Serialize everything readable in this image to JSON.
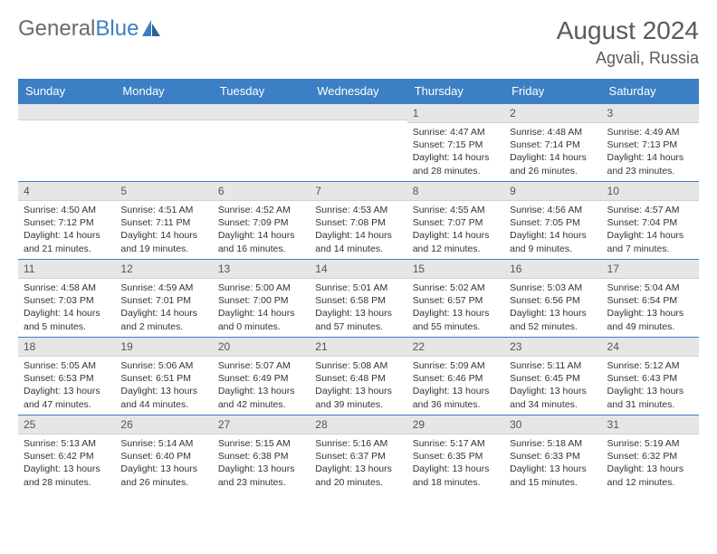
{
  "logo": {
    "word1": "General",
    "word2": "Blue"
  },
  "title": "August 2024",
  "location": "Agvali, Russia",
  "colors": {
    "header_bg": "#3b7fc4",
    "header_text": "#ffffff",
    "daynum_bg": "#e6e6e6",
    "border": "#3b7fc4",
    "text": "#333333",
    "logo_gray": "#6a6a6a",
    "logo_blue": "#3b7fc4",
    "background": "#ffffff"
  },
  "weekdays": [
    "Sunday",
    "Monday",
    "Tuesday",
    "Wednesday",
    "Thursday",
    "Friday",
    "Saturday"
  ],
  "weeks": [
    [
      {
        "day": "",
        "sunrise": "",
        "sunset": "",
        "daylight": ""
      },
      {
        "day": "",
        "sunrise": "",
        "sunset": "",
        "daylight": ""
      },
      {
        "day": "",
        "sunrise": "",
        "sunset": "",
        "daylight": ""
      },
      {
        "day": "",
        "sunrise": "",
        "sunset": "",
        "daylight": ""
      },
      {
        "day": "1",
        "sunrise": "Sunrise: 4:47 AM",
        "sunset": "Sunset: 7:15 PM",
        "daylight": "Daylight: 14 hours and 28 minutes."
      },
      {
        "day": "2",
        "sunrise": "Sunrise: 4:48 AM",
        "sunset": "Sunset: 7:14 PM",
        "daylight": "Daylight: 14 hours and 26 minutes."
      },
      {
        "day": "3",
        "sunrise": "Sunrise: 4:49 AM",
        "sunset": "Sunset: 7:13 PM",
        "daylight": "Daylight: 14 hours and 23 minutes."
      }
    ],
    [
      {
        "day": "4",
        "sunrise": "Sunrise: 4:50 AM",
        "sunset": "Sunset: 7:12 PM",
        "daylight": "Daylight: 14 hours and 21 minutes."
      },
      {
        "day": "5",
        "sunrise": "Sunrise: 4:51 AM",
        "sunset": "Sunset: 7:11 PM",
        "daylight": "Daylight: 14 hours and 19 minutes."
      },
      {
        "day": "6",
        "sunrise": "Sunrise: 4:52 AM",
        "sunset": "Sunset: 7:09 PM",
        "daylight": "Daylight: 14 hours and 16 minutes."
      },
      {
        "day": "7",
        "sunrise": "Sunrise: 4:53 AM",
        "sunset": "Sunset: 7:08 PM",
        "daylight": "Daylight: 14 hours and 14 minutes."
      },
      {
        "day": "8",
        "sunrise": "Sunrise: 4:55 AM",
        "sunset": "Sunset: 7:07 PM",
        "daylight": "Daylight: 14 hours and 12 minutes."
      },
      {
        "day": "9",
        "sunrise": "Sunrise: 4:56 AM",
        "sunset": "Sunset: 7:05 PM",
        "daylight": "Daylight: 14 hours and 9 minutes."
      },
      {
        "day": "10",
        "sunrise": "Sunrise: 4:57 AM",
        "sunset": "Sunset: 7:04 PM",
        "daylight": "Daylight: 14 hours and 7 minutes."
      }
    ],
    [
      {
        "day": "11",
        "sunrise": "Sunrise: 4:58 AM",
        "sunset": "Sunset: 7:03 PM",
        "daylight": "Daylight: 14 hours and 5 minutes."
      },
      {
        "day": "12",
        "sunrise": "Sunrise: 4:59 AM",
        "sunset": "Sunset: 7:01 PM",
        "daylight": "Daylight: 14 hours and 2 minutes."
      },
      {
        "day": "13",
        "sunrise": "Sunrise: 5:00 AM",
        "sunset": "Sunset: 7:00 PM",
        "daylight": "Daylight: 14 hours and 0 minutes."
      },
      {
        "day": "14",
        "sunrise": "Sunrise: 5:01 AM",
        "sunset": "Sunset: 6:58 PM",
        "daylight": "Daylight: 13 hours and 57 minutes."
      },
      {
        "day": "15",
        "sunrise": "Sunrise: 5:02 AM",
        "sunset": "Sunset: 6:57 PM",
        "daylight": "Daylight: 13 hours and 55 minutes."
      },
      {
        "day": "16",
        "sunrise": "Sunrise: 5:03 AM",
        "sunset": "Sunset: 6:56 PM",
        "daylight": "Daylight: 13 hours and 52 minutes."
      },
      {
        "day": "17",
        "sunrise": "Sunrise: 5:04 AM",
        "sunset": "Sunset: 6:54 PM",
        "daylight": "Daylight: 13 hours and 49 minutes."
      }
    ],
    [
      {
        "day": "18",
        "sunrise": "Sunrise: 5:05 AM",
        "sunset": "Sunset: 6:53 PM",
        "daylight": "Daylight: 13 hours and 47 minutes."
      },
      {
        "day": "19",
        "sunrise": "Sunrise: 5:06 AM",
        "sunset": "Sunset: 6:51 PM",
        "daylight": "Daylight: 13 hours and 44 minutes."
      },
      {
        "day": "20",
        "sunrise": "Sunrise: 5:07 AM",
        "sunset": "Sunset: 6:49 PM",
        "daylight": "Daylight: 13 hours and 42 minutes."
      },
      {
        "day": "21",
        "sunrise": "Sunrise: 5:08 AM",
        "sunset": "Sunset: 6:48 PM",
        "daylight": "Daylight: 13 hours and 39 minutes."
      },
      {
        "day": "22",
        "sunrise": "Sunrise: 5:09 AM",
        "sunset": "Sunset: 6:46 PM",
        "daylight": "Daylight: 13 hours and 36 minutes."
      },
      {
        "day": "23",
        "sunrise": "Sunrise: 5:11 AM",
        "sunset": "Sunset: 6:45 PM",
        "daylight": "Daylight: 13 hours and 34 minutes."
      },
      {
        "day": "24",
        "sunrise": "Sunrise: 5:12 AM",
        "sunset": "Sunset: 6:43 PM",
        "daylight": "Daylight: 13 hours and 31 minutes."
      }
    ],
    [
      {
        "day": "25",
        "sunrise": "Sunrise: 5:13 AM",
        "sunset": "Sunset: 6:42 PM",
        "daylight": "Daylight: 13 hours and 28 minutes."
      },
      {
        "day": "26",
        "sunrise": "Sunrise: 5:14 AM",
        "sunset": "Sunset: 6:40 PM",
        "daylight": "Daylight: 13 hours and 26 minutes."
      },
      {
        "day": "27",
        "sunrise": "Sunrise: 5:15 AM",
        "sunset": "Sunset: 6:38 PM",
        "daylight": "Daylight: 13 hours and 23 minutes."
      },
      {
        "day": "28",
        "sunrise": "Sunrise: 5:16 AM",
        "sunset": "Sunset: 6:37 PM",
        "daylight": "Daylight: 13 hours and 20 minutes."
      },
      {
        "day": "29",
        "sunrise": "Sunrise: 5:17 AM",
        "sunset": "Sunset: 6:35 PM",
        "daylight": "Daylight: 13 hours and 18 minutes."
      },
      {
        "day": "30",
        "sunrise": "Sunrise: 5:18 AM",
        "sunset": "Sunset: 6:33 PM",
        "daylight": "Daylight: 13 hours and 15 minutes."
      },
      {
        "day": "31",
        "sunrise": "Sunrise: 5:19 AM",
        "sunset": "Sunset: 6:32 PM",
        "daylight": "Daylight: 13 hours and 12 minutes."
      }
    ]
  ]
}
